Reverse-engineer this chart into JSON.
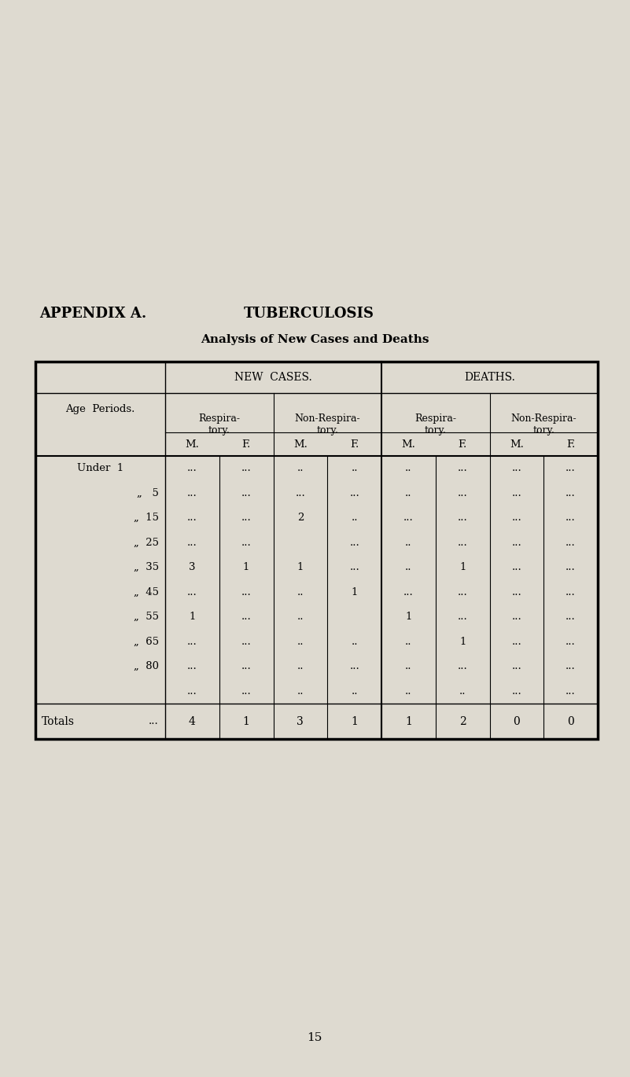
{
  "title1": "APPENDIX A.",
  "title2": "TUBERCULOSIS",
  "subtitle": "Analysis of New Cases and Deaths",
  "page_number": "15",
  "bg_color": "#dedad0",
  "header_row1_left": "NEW  CASES.",
  "header_row1_right": "DEATHS.",
  "header_row3_cols": [
    "M.",
    "F.",
    "M.",
    "F.",
    "M.",
    "F.",
    "M.",
    "F."
  ],
  "age_col_header": "Age  Periods.",
  "rows": [
    [
      "Under  1",
      "...",
      "...",
      "..",
      "..",
      "..",
      "...",
      "...",
      "..."
    ],
    [
      "„   5",
      "...",
      "...",
      "...",
      "...",
      "..",
      "...",
      "...",
      "..."
    ],
    [
      "„  15",
      "...",
      "...",
      "2",
      "..",
      "...",
      "...",
      "...",
      "..."
    ],
    [
      "„  25",
      "...",
      "...",
      "",
      "...",
      "..",
      "...",
      "...",
      "..."
    ],
    [
      "„  35",
      "3",
      "1",
      "1",
      "...",
      "..",
      "1",
      "...",
      "..."
    ],
    [
      "„  45",
      "...",
      "...",
      "..",
      "1",
      "...",
      "...",
      "...",
      "..."
    ],
    [
      "„  55",
      "1",
      "...",
      "..",
      "",
      "1",
      "...",
      "...",
      "..."
    ],
    [
      "„  65",
      "...",
      "...",
      "..",
      "..",
      "..",
      "1",
      "...",
      "..."
    ],
    [
      "„  80",
      "...",
      "...",
      "..",
      "...",
      "..",
      "...",
      "...",
      "..."
    ],
    [
      "",
      "...",
      "...",
      "..",
      "..",
      "..",
      "..",
      "...",
      "..."
    ]
  ],
  "totals_row": [
    "Totals",
    "...",
    "4",
    "1",
    "3",
    "1",
    "1",
    "2",
    "0",
    "0"
  ]
}
